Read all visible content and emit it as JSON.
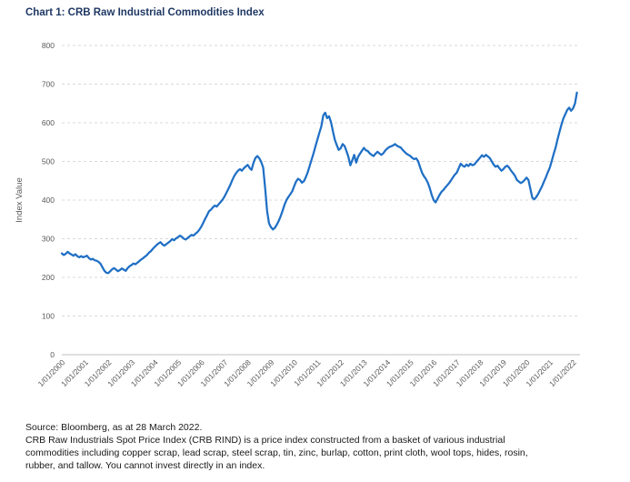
{
  "chart_data": {
    "type": "line",
    "title": "Chart 1: CRB Raw Industrial Commodities Index",
    "xlabel": "",
    "ylabel": "Index Value",
    "ylim": [
      0,
      800
    ],
    "y_ticks": [
      0,
      100,
      200,
      300,
      400,
      500,
      600,
      700,
      800
    ],
    "x_tick_labels": [
      "1/01/2000",
      "1/01/2001",
      "1/01/2002",
      "1/01/2003",
      "1/01/2004",
      "1/01/2005",
      "1/01/2006",
      "1/01/2007",
      "1/01/2008",
      "1/01/2009",
      "1/01/2010",
      "1/01/2011",
      "1/01/2012",
      "1/01/2013",
      "1/01/2014",
      "1/01/2015",
      "1/01/2016",
      "1/01/2017",
      "1/01/2018",
      "1/01/2019",
      "1/01/2020",
      "1/01/2021",
      "1/01/2022"
    ],
    "grid": "horizontal-dashed",
    "legend": "none",
    "series": [
      {
        "name": "CRB Raw Industrial Commodities Index",
        "color": "#1F6FC5",
        "start": "1/01/2000",
        "end": "3/2022",
        "frequency": "monthly",
        "values": [
          262,
          258,
          261,
          266,
          262,
          259,
          256,
          260,
          255,
          252,
          255,
          252,
          254,
          256,
          250,
          246,
          248,
          244,
          243,
          240,
          235,
          226,
          217,
          212,
          211,
          216,
          221,
          224,
          220,
          216,
          219,
          223,
          220,
          217,
          224,
          229,
          232,
          236,
          234,
          238,
          242,
          246,
          250,
          254,
          258,
          264,
          268,
          274,
          279,
          284,
          288,
          291,
          285,
          282,
          286,
          290,
          294,
          299,
          296,
          301,
          304,
          308,
          305,
          300,
          298,
          302,
          306,
          310,
          308,
          313,
          317,
          323,
          331,
          341,
          351,
          361,
          371,
          375,
          381,
          386,
          383,
          389,
          395,
          401,
          409,
          419,
          429,
          439,
          451,
          462,
          470,
          476,
          480,
          476,
          482,
          487,
          491,
          483,
          478,
          497,
          509,
          514,
          508,
          498,
          484,
          430,
          372,
          340,
          330,
          324,
          328,
          336,
          346,
          358,
          372,
          388,
          400,
          408,
          415,
          423,
          436,
          448,
          455,
          452,
          445,
          449,
          459,
          472,
          488,
          505,
          521,
          539,
          557,
          574,
          590,
          619,
          626,
          612,
          617,
          602,
          578,
          556,
          542,
          530,
          534,
          545,
          540,
          527,
          512,
          490,
          503,
          517,
          497,
          512,
          520,
          528,
          535,
          529,
          527,
          521,
          517,
          514,
          520,
          525,
          521,
          517,
          521,
          528,
          533,
          537,
          539,
          541,
          545,
          541,
          538,
          536,
          530,
          525,
          520,
          517,
          514,
          509,
          506,
          508,
          501,
          485,
          471,
          462,
          455,
          445,
          431,
          414,
          400,
          394,
          403,
          413,
          421,
          426,
          432,
          438,
          444,
          451,
          459,
          466,
          471,
          483,
          494,
          489,
          486,
          492,
          488,
          494,
          490,
          492,
          498,
          504,
          510,
          516,
          512,
          517,
          513,
          509,
          500,
          492,
          486,
          489,
          482,
          476,
          480,
          486,
          489,
          484,
          476,
          470,
          463,
          452,
          448,
          444,
          447,
          452,
          458,
          452,
          428,
          406,
          402,
          408,
          416,
          426,
          436,
          448,
          459,
          472,
          484,
          501,
          519,
          536,
          557,
          576,
          595,
          611,
          622,
          633,
          639,
          631,
          637,
          650,
          678
        ]
      }
    ]
  },
  "footer": {
    "source": "Source: Bloomberg, as at 28 March 2022.",
    "description_lines": [
      "CRB Raw Industrials Spot Price Index (CRB RIND) is a price index constructed from a basket of various industrial",
      "commodities including copper scrap, lead scrap, steel scrap, tin, zinc, burlap, cotton, print cloth, wool tops, hides, rosin,",
      "rubber, and tallow. You cannot invest directly in an index."
    ]
  }
}
